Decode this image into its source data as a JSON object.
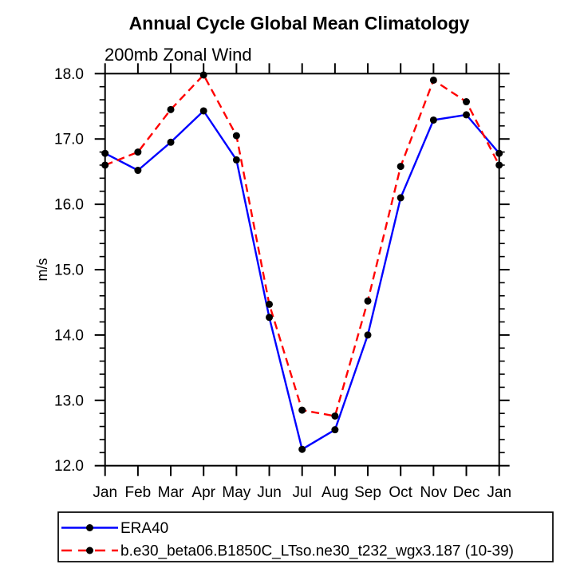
{
  "chart_data": {
    "type": "line",
    "title": "Annual Cycle Global Mean Climatology",
    "subtitle": "200mb Zonal Wind",
    "ylabel": "m/s",
    "xlabel": "",
    "categories": [
      "Jan",
      "Feb",
      "Mar",
      "Apr",
      "May",
      "Jun",
      "Jul",
      "Aug",
      "Sep",
      "Oct",
      "Nov",
      "Dec",
      "Jan"
    ],
    "series": [
      {
        "name": "ERA40",
        "color": "#0000ff",
        "line_style": "solid",
        "marker": "circle",
        "marker_color": "#000000",
        "values": [
          16.78,
          16.52,
          16.95,
          17.43,
          16.68,
          14.27,
          12.25,
          12.55,
          14.0,
          16.1,
          17.29,
          17.37,
          16.78
        ]
      },
      {
        "name": "b.e30_beta06.B1850C_LTso.ne30_t232_wgx3.187 (10-39)",
        "color": "#ff0000",
        "line_style": "dashed",
        "marker": "circle",
        "marker_color": "#000000",
        "values": [
          16.6,
          16.8,
          17.45,
          17.98,
          17.05,
          14.47,
          12.85,
          12.76,
          14.52,
          16.58,
          17.9,
          17.57,
          16.6
        ]
      }
    ],
    "ylim": [
      12.0,
      18.0
    ],
    "ytick_major_interval": 1.0,
    "ytick_minor_interval": 0.2,
    "ytick_labels": [
      "12.0",
      "13.0",
      "14.0",
      "15.0",
      "16.0",
      "17.0",
      "18.0"
    ],
    "grid": false,
    "legend_position": "bottom-left",
    "axis_color": "#000000",
    "background_color": "#ffffff"
  }
}
